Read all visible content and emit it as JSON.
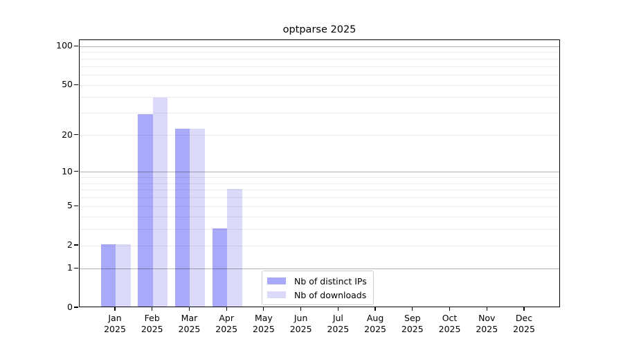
{
  "title": "optparse 2025",
  "chart_data": {
    "type": "bar",
    "title": "optparse 2025",
    "categories": [
      "Jan",
      "Feb",
      "Mar",
      "Apr",
      "May",
      "Jun",
      "Jul",
      "Aug",
      "Sep",
      "Oct",
      "Nov",
      "Dec"
    ],
    "x_year_label": "2025",
    "series": [
      {
        "name": "Nb of distinct IPs",
        "color": "#a9a9fa",
        "values": [
          2,
          29,
          22,
          3,
          0,
          0,
          0,
          0,
          0,
          0,
          0,
          0
        ]
      },
      {
        "name": "Nb of downloads",
        "color": "#dbdbf9",
        "values": [
          2,
          39,
          22,
          7,
          0,
          0,
          0,
          0,
          0,
          0,
          0,
          0
        ]
      }
    ],
    "yscale": "log1p",
    "ylim": [
      0,
      112
    ],
    "yticks": [
      0,
      1,
      2,
      5,
      10,
      20,
      50,
      100
    ],
    "ygrid_major": [
      1,
      10,
      100
    ],
    "ygrid_minor": [
      2,
      3,
      4,
      5,
      6,
      7,
      8,
      9,
      20,
      30,
      40,
      50,
      60,
      70,
      80,
      90
    ],
    "grid": true,
    "legend_position": "lower-center"
  },
  "colors": {
    "grid_major": "rgba(0,0,0,0.30)",
    "grid_minor": "rgba(0,0,0,0.075)",
    "spine": "#000000",
    "text": "#000000",
    "legend_border": "#cccccc"
  }
}
